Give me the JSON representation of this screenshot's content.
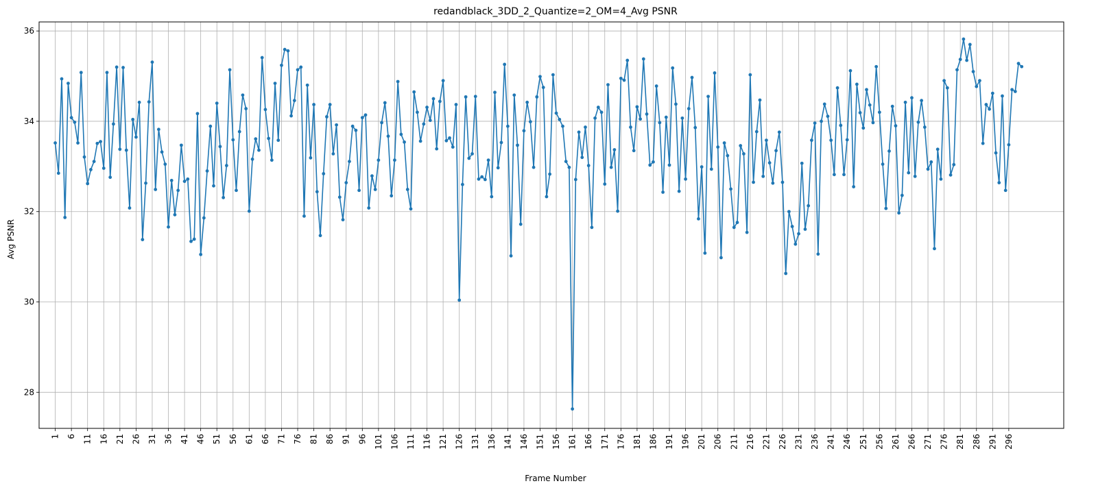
{
  "chart_data": {
    "type": "line",
    "title": "redandblack_3DD_2_Quantize=2_OM=4_Avg PSNR",
    "xlabel": "Frame Number",
    "ylabel": "Avg PSNR",
    "xlim": [
      -4,
      313
    ],
    "ylim": [
      27.2,
      36.2
    ],
    "xticks": [
      1,
      6,
      11,
      16,
      21,
      26,
      31,
      36,
      41,
      46,
      51,
      56,
      61,
      66,
      71,
      76,
      81,
      86,
      91,
      96,
      101,
      106,
      111,
      116,
      121,
      126,
      131,
      136,
      141,
      146,
      151,
      156,
      161,
      166,
      171,
      176,
      181,
      186,
      191,
      196,
      201,
      206,
      211,
      216,
      221,
      226,
      231,
      236,
      241,
      246,
      251,
      256,
      261,
      266,
      271,
      276,
      281,
      286,
      291,
      296
    ],
    "yticks": [
      28,
      30,
      32,
      34,
      36
    ],
    "grid": true,
    "marker": "point",
    "line_color": "#1f77b4",
    "series": [
      {
        "x_start": 1,
        "values": [
          33.52,
          32.85,
          34.94,
          31.87,
          34.84,
          34.08,
          33.98,
          33.52,
          35.08,
          33.21,
          32.62,
          32.93,
          33.11,
          33.51,
          33.55,
          32.96,
          35.08,
          32.76,
          33.94,
          35.2,
          33.38,
          35.19,
          33.36,
          32.08,
          34.04,
          33.65,
          34.42,
          31.38,
          32.63,
          34.43,
          35.31,
          32.49,
          33.82,
          33.32,
          33.05,
          31.66,
          32.69,
          31.93,
          32.47,
          33.47,
          32.67,
          32.72,
          31.34,
          31.39,
          34.17,
          31.05,
          31.86,
          32.9,
          33.89,
          32.57,
          34.4,
          33.44,
          32.31,
          33.02,
          35.14,
          33.59,
          32.47,
          33.77,
          34.58,
          34.28,
          32.01,
          33.16,
          33.61,
          33.36,
          35.41,
          34.26,
          33.62,
          33.14,
          34.84,
          33.58,
          35.24,
          35.59,
          35.56,
          34.12,
          34.46,
          35.14,
          35.2,
          31.9,
          34.8,
          33.19,
          34.37,
          32.44,
          31.47,
          32.84,
          34.1,
          34.37,
          33.28,
          33.92,
          32.32,
          31.82,
          32.64,
          33.11,
          33.89,
          33.8,
          32.47,
          34.08,
          34.14,
          32.08,
          32.79,
          32.49,
          33.14,
          33.97,
          34.41,
          33.67,
          32.35,
          33.14,
          34.88,
          33.71,
          33.54,
          32.49,
          32.06,
          34.65,
          34.2,
          33.56,
          33.94,
          34.31,
          34.02,
          34.5,
          33.39,
          34.44,
          34.9,
          33.57,
          33.63,
          33.43,
          34.37,
          30.04,
          32.6,
          34.54,
          33.18,
          33.28,
          34.55,
          32.72,
          32.77,
          32.71,
          33.14,
          32.33,
          34.64,
          32.97,
          33.53,
          35.26,
          33.89,
          31.02,
          34.58,
          33.47,
          31.72,
          33.79,
          34.42,
          33.99,
          32.98,
          34.54,
          34.99,
          34.75,
          32.33,
          32.83,
          35.03,
          34.18,
          34.04,
          33.89,
          33.11,
          32.98,
          27.63,
          32.71,
          33.76,
          33.2,
          33.87,
          33.02,
          31.65,
          34.07,
          34.31,
          34.2,
          32.61,
          34.81,
          32.98,
          33.37,
          32.01,
          34.95,
          34.91,
          35.35,
          33.87,
          33.35,
          34.32,
          34.05,
          35.38,
          34.16,
          33.03,
          33.1,
          34.78,
          33.97,
          32.43,
          34.09,
          33.03,
          35.18,
          34.38,
          32.45,
          34.07,
          32.72,
          34.28,
          34.97,
          33.86,
          31.84,
          32.99,
          31.08,
          34.55,
          32.94,
          35.07,
          33.43,
          30.98,
          33.52,
          33.24,
          32.5,
          31.65,
          31.76,
          33.46,
          33.28,
          31.54,
          35.03,
          32.65,
          33.77,
          34.47,
          32.78,
          33.58,
          33.08,
          32.63,
          33.35,
          33.76,
          32.65,
          30.63,
          32.0,
          31.67,
          31.28,
          31.51,
          33.07,
          31.61,
          32.13,
          33.58,
          33.96,
          31.06,
          34.0,
          34.38,
          34.11,
          33.58,
          32.82,
          34.74,
          33.91,
          32.82,
          33.59,
          35.12,
          32.55,
          34.82,
          34.19,
          33.85,
          34.7,
          34.36,
          33.97,
          35.21,
          34.2,
          33.05,
          32.07,
          33.34,
          34.33,
          33.9,
          31.97,
          32.36,
          34.42,
          32.86,
          34.52,
          32.78,
          33.98,
          34.46,
          33.87,
          32.94,
          33.1,
          31.18,
          33.38,
          32.72,
          34.9,
          34.74,
          32.81,
          33.04,
          35.14,
          35.37,
          35.82,
          35.35,
          35.7,
          35.1,
          34.77,
          34.9,
          33.51,
          34.37,
          34.27,
          34.62,
          33.3,
          32.64,
          34.56,
          32.47,
          33.48,
          34.7,
          34.66,
          35.28,
          35.21
        ]
      }
    ]
  }
}
